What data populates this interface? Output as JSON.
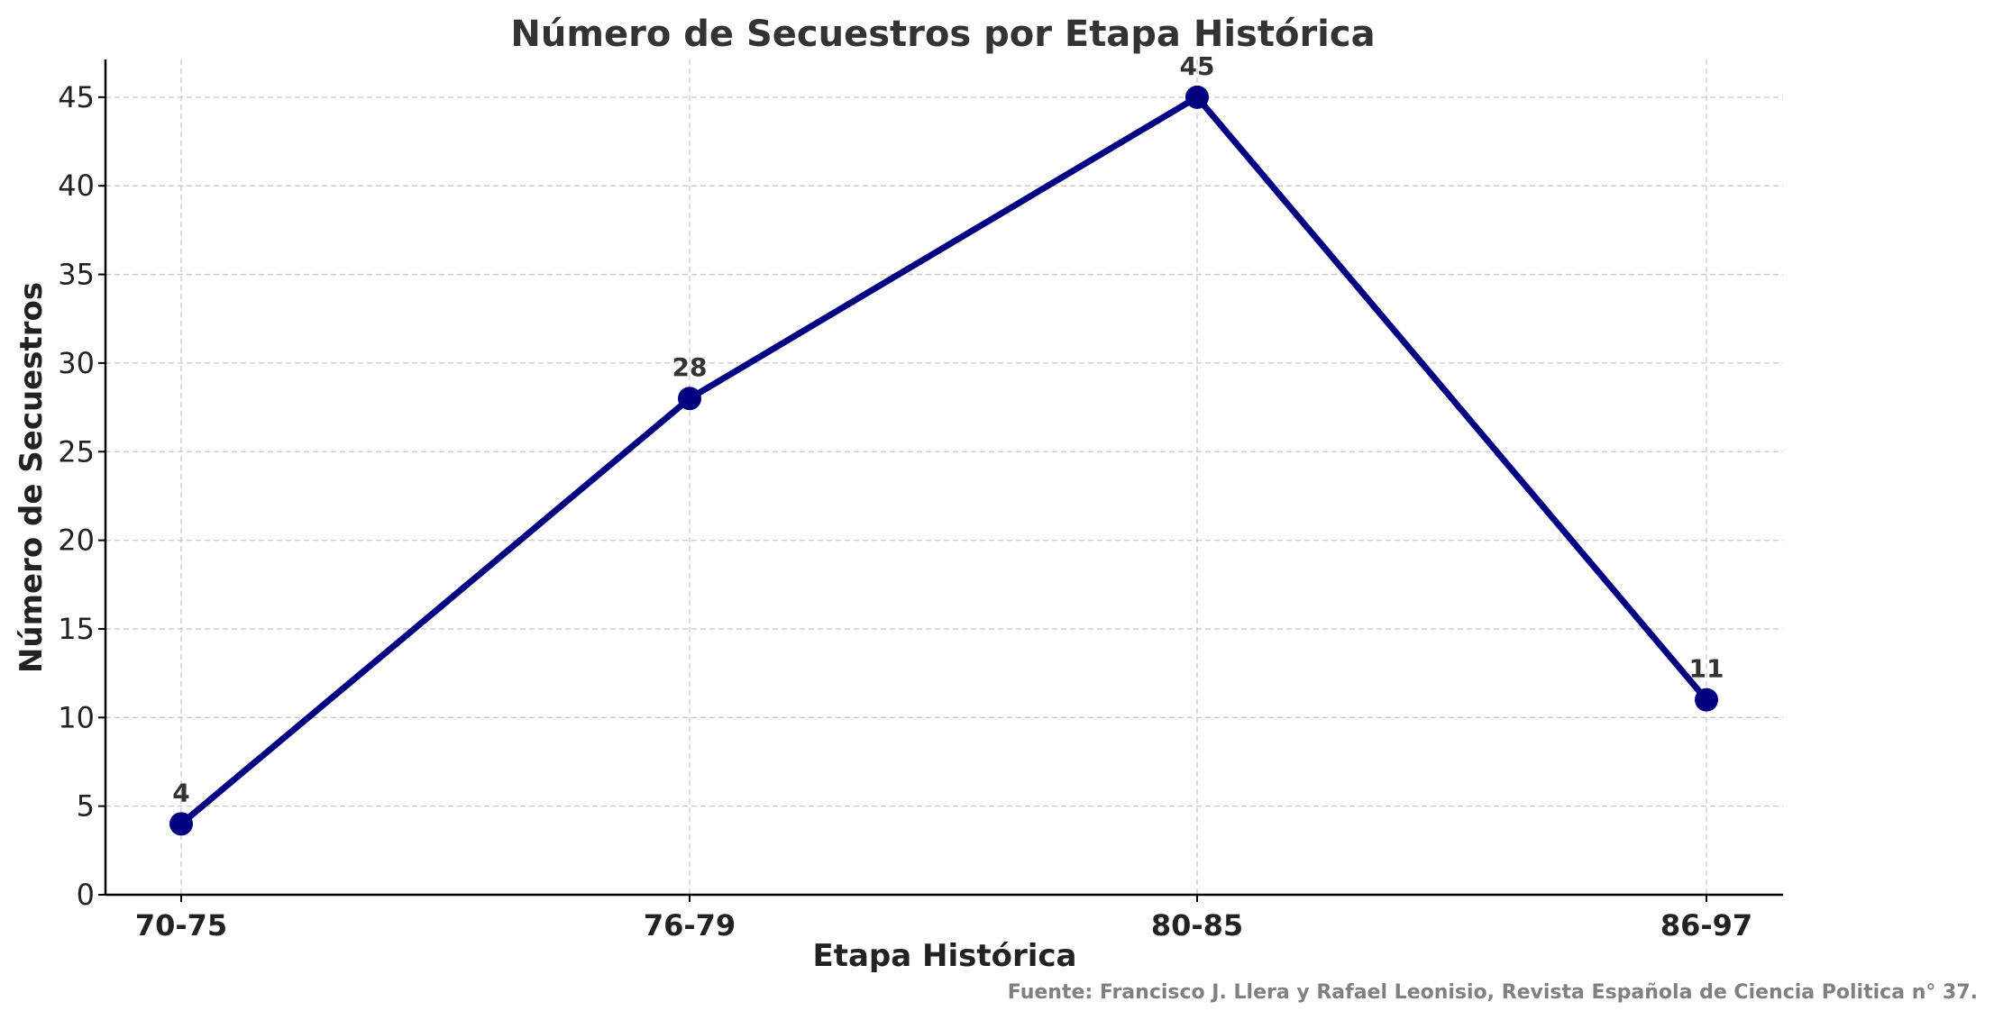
{
  "chart_data": {
    "type": "line",
    "title": "Número de Secuestros por Etapa Histórica",
    "xlabel": "Etapa Histórica",
    "ylabel": "Número de Secuestros",
    "categories": [
      "70-75",
      "76-79",
      "80-85",
      "86-97"
    ],
    "series": [
      {
        "values": [
          4,
          28,
          45,
          11
        ]
      }
    ],
    "data_labels": [
      "4",
      "28",
      "45",
      "11"
    ],
    "ylim": [
      0,
      47
    ],
    "yticks": [
      0,
      5,
      10,
      15,
      20,
      25,
      30,
      35,
      40,
      45
    ],
    "grid": true,
    "line_color": "#000080",
    "source_note": "Fuente: Francisco J. Llera y Rafael Leonisio, Revista Española de Ciencia Politica n° 37."
  }
}
